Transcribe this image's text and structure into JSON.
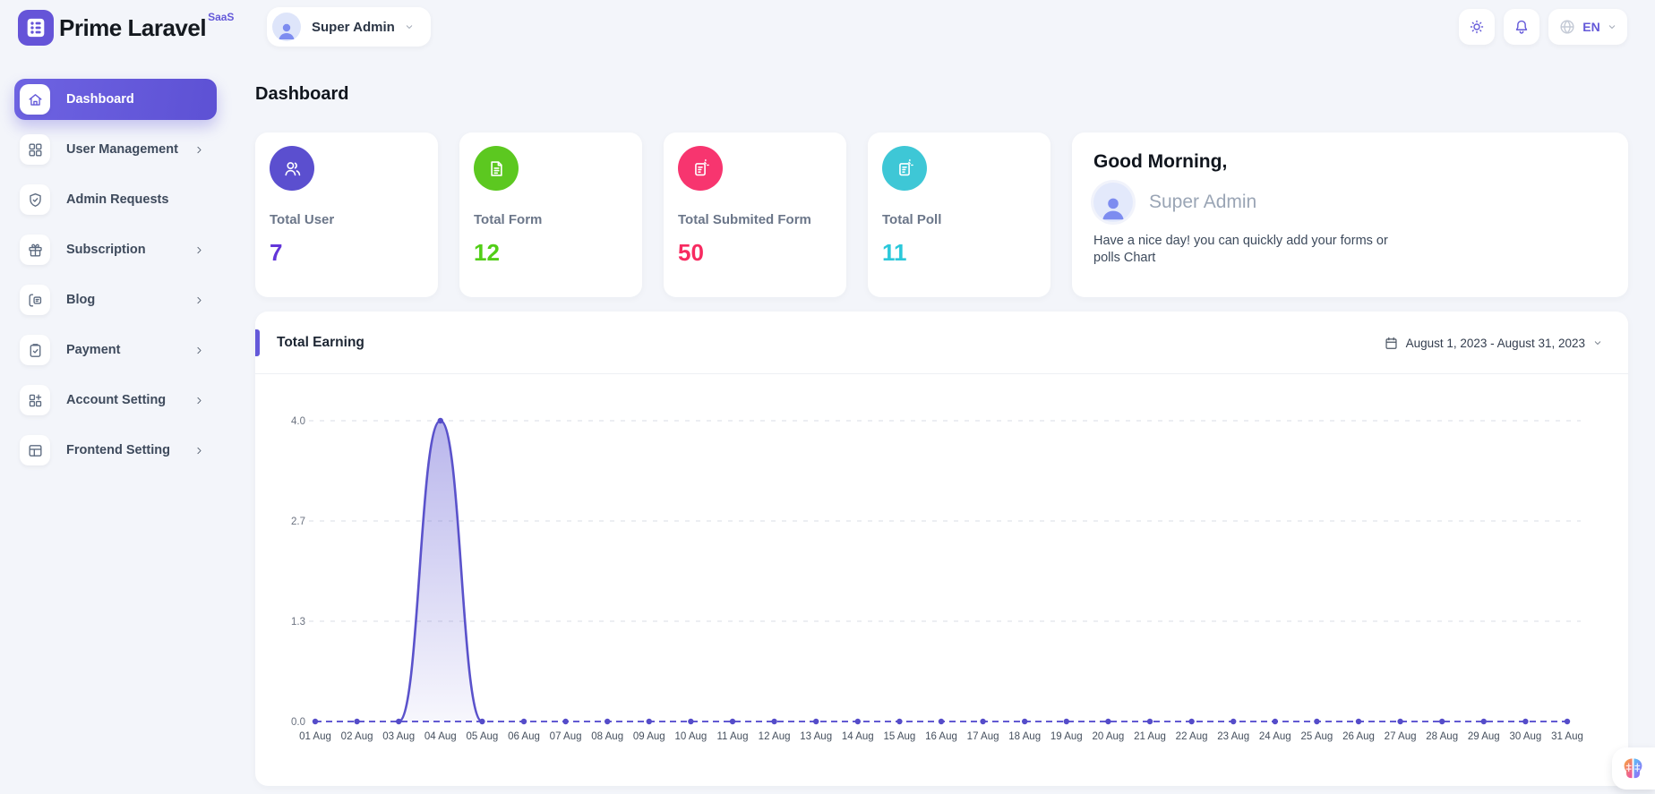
{
  "brand": {
    "name": "Prime Laravel",
    "badge": "SaaS",
    "logo_icon": "form-logo-icon"
  },
  "header": {
    "user_menu": {
      "label": "Super Admin",
      "avatar_icon": "person-icon",
      "chevron_icon": "chevron-down-icon"
    },
    "actions": [
      {
        "name": "theme-toggle",
        "icon": "sun-icon"
      },
      {
        "name": "notifications",
        "icon": "bell-icon"
      }
    ],
    "language": {
      "code": "EN",
      "globe_icon": "globe-icon",
      "chevron_icon": "chevron-down-icon"
    }
  },
  "sidebar": {
    "items": [
      {
        "slug": "dashboard",
        "label": "Dashboard",
        "icon": "home-icon",
        "active": true,
        "expandable": false
      },
      {
        "slug": "user-management",
        "label": "User Management",
        "icon": "grid-icon",
        "active": false,
        "expandable": true
      },
      {
        "slug": "admin-requests",
        "label": "Admin Requests",
        "icon": "shield-check-icon",
        "active": false,
        "expandable": false
      },
      {
        "slug": "subscription",
        "label": "Subscription",
        "icon": "gift-icon",
        "active": false,
        "expandable": true
      },
      {
        "slug": "blog",
        "label": "Blog",
        "icon": "blog-icon",
        "active": false,
        "expandable": true
      },
      {
        "slug": "payment",
        "label": "Payment",
        "icon": "clipboard-check-icon",
        "active": false,
        "expandable": true
      },
      {
        "slug": "account-setting",
        "label": "Account Setting",
        "icon": "grid-plus-icon",
        "active": false,
        "expandable": true
      },
      {
        "slug": "frontend-setting",
        "label": "Frontend Setting",
        "icon": "layout-icon",
        "active": false,
        "expandable": true
      }
    ]
  },
  "page": {
    "title": "Dashboard"
  },
  "stats": [
    {
      "slug": "total-user",
      "label": "Total User",
      "value": "7",
      "icon": "users-icon",
      "circle_color": "#5B4FCF",
      "value_color": "#6336D9"
    },
    {
      "slug": "total-form",
      "label": "Total Form",
      "value": "12",
      "icon": "file-text-icon",
      "circle_color": "#5CC820",
      "value_color": "#52CE17"
    },
    {
      "slug": "total-submited-form",
      "label": "Total Submited Form",
      "value": "50",
      "icon": "form-edit-icon",
      "circle_color": "#F7356F",
      "value_color": "#F72A60"
    },
    {
      "slug": "total-poll",
      "label": "Total Poll",
      "value": "11",
      "icon": "form-edit-icon",
      "circle_color": "#3EC7D6",
      "value_color": "#2BC8DA"
    }
  ],
  "greeting": {
    "title": "Good Morning,",
    "name": "Super Admin",
    "message": "Have a nice day! you can quickly add your forms or polls Chart"
  },
  "chart_card": {
    "title": "Total Earning",
    "date_range": "August 1, 2023 - August 31, 2023",
    "calendar_icon": "calendar-icon"
  },
  "chart_data": {
    "type": "area",
    "title": "Total Earning",
    "x": [
      "01 Aug",
      "02 Aug",
      "03 Aug",
      "04 Aug",
      "05 Aug",
      "06 Aug",
      "07 Aug",
      "08 Aug",
      "09 Aug",
      "10 Aug",
      "11 Aug",
      "12 Aug",
      "13 Aug",
      "14 Aug",
      "15 Aug",
      "16 Aug",
      "17 Aug",
      "18 Aug",
      "19 Aug",
      "20 Aug",
      "21 Aug",
      "22 Aug",
      "23 Aug",
      "24 Aug",
      "25 Aug",
      "26 Aug",
      "27 Aug",
      "28 Aug",
      "29 Aug",
      "30 Aug",
      "31 Aug"
    ],
    "series": [
      {
        "name": "Total Earning",
        "values": [
          0,
          0,
          0,
          4,
          0,
          0,
          0,
          0,
          0,
          0,
          0,
          0,
          0,
          0,
          0,
          0,
          0,
          0,
          0,
          0,
          0,
          0,
          0,
          0,
          0,
          0,
          0,
          0,
          0,
          0,
          0
        ]
      }
    ],
    "ylim": [
      0,
      4
    ],
    "yticks": [
      {
        "value": 0,
        "label": "0.0"
      },
      {
        "value": 1.3333,
        "label": "1.3"
      },
      {
        "value": 2.6667,
        "label": "2.7"
      },
      {
        "value": 4,
        "label": "4.0"
      }
    ],
    "grid": "horizontal-dashed",
    "legend": "none",
    "curve": "smooth",
    "line_color": "#5A52CB",
    "marker_color": "#554CC9",
    "baseline_dash_color": "#625AD2",
    "fill_from": "rgba(99,92,212,0.45)",
    "fill_to": "rgba(99,92,212,0.05)",
    "grid_color": "#d9dde4",
    "ylabel_color": "#6b7280",
    "xlabel_color": "#46505e"
  },
  "colors": {
    "primary": "#6459D9",
    "background": "#f3f5fa",
    "card": "#ffffff"
  }
}
